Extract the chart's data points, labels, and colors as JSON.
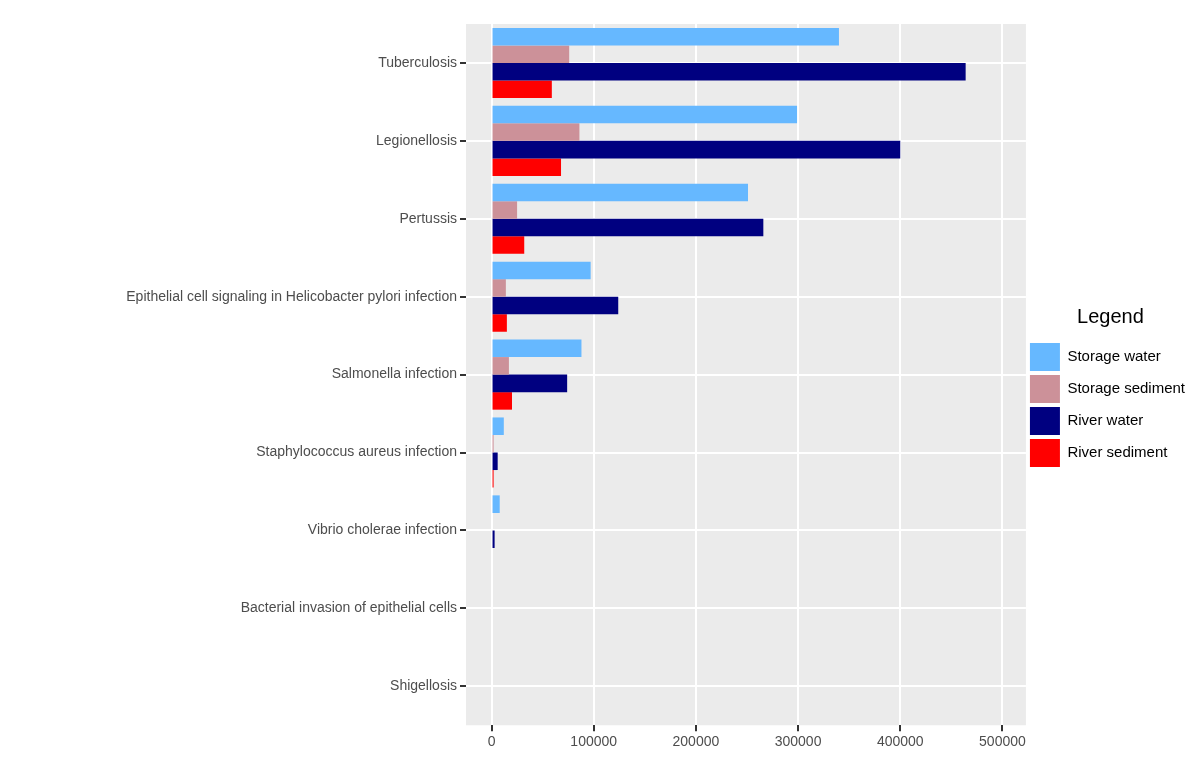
{
  "chart_data": {
    "type": "bar",
    "orientation": "horizontal",
    "legend_title": "Legend",
    "legend": "right",
    "grid": true,
    "categories": [
      "Tuberculosis",
      "Legionellosis",
      "Pertussis",
      "Epithelial cell signaling in Helicobacter pylori infection",
      "Salmonella infection",
      "Staphylococcus aureus infection",
      "Vibrio cholerae infection",
      "Bacterial invasion of epithelial cells",
      "Shigellosis"
    ],
    "series": [
      {
        "name": "Storage water",
        "color": "#66b8ff",
        "values": [
          340000,
          299000,
          251000,
          97000,
          88000,
          12000,
          8000,
          null,
          null
        ]
      },
      {
        "name": "Storage sediment",
        "color": "#cc9199",
        "values": [
          76000,
          86000,
          25000,
          14000,
          17000,
          2000,
          null,
          null,
          null
        ]
      },
      {
        "name": "River water",
        "color": "#000080",
        "values": [
          464000,
          400000,
          266000,
          124000,
          74000,
          6000,
          3000,
          null,
          null
        ]
      },
      {
        "name": "River sediment",
        "color": "#ff0000",
        "values": [
          59000,
          68000,
          32000,
          15000,
          20000,
          2000,
          null,
          null,
          null
        ]
      }
    ],
    "xlim": [
      -25000,
      523000
    ],
    "xticks": [
      0,
      100000,
      200000,
      300000,
      400000,
      500000
    ]
  }
}
